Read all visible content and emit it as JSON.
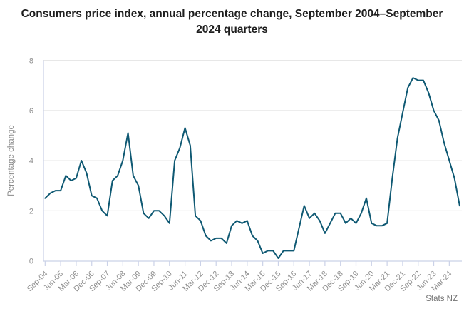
{
  "title": "Consumers price index, annual percentage change, September 2004–September 2024 quarters",
  "attribution": "Stats NZ",
  "colors": {
    "line": "#0f5973",
    "gridline": "#e7e7e7",
    "axis": "#cbd2e8",
    "tick_label": "#8f8f8f",
    "title": "#1e1e1e",
    "attribution": "#737373",
    "background": "#ffffff"
  },
  "chart_data": {
    "type": "line",
    "title": "Consumers price index, annual percentage change, September 2004–September 2024 quarters",
    "xlabel": "",
    "ylabel": "Percentage change",
    "ylim": [
      0,
      8
    ],
    "y_ticks": [
      0,
      2,
      4,
      6,
      8
    ],
    "x_tick_every": 3,
    "grid": true,
    "legend_position": "none",
    "categories": [
      "Sep-04",
      "Dec-04",
      "Mar-05",
      "Jun-05",
      "Sep-05",
      "Dec-05",
      "Mar-06",
      "Jun-06",
      "Sep-06",
      "Dec-06",
      "Mar-07",
      "Jun-07",
      "Sep-07",
      "Dec-07",
      "Mar-08",
      "Jun-08",
      "Sep-08",
      "Dec-08",
      "Mar-09",
      "Jun-09",
      "Sep-09",
      "Dec-09",
      "Mar-10",
      "Jun-10",
      "Sep-10",
      "Dec-10",
      "Mar-11",
      "Jun-11",
      "Sep-11",
      "Dec-11",
      "Mar-12",
      "Jun-12",
      "Sep-12",
      "Dec-12",
      "Mar-13",
      "Jun-13",
      "Sep-13",
      "Dec-13",
      "Mar-14",
      "Jun-14",
      "Sep-14",
      "Dec-14",
      "Mar-15",
      "Jun-15",
      "Sep-15",
      "Dec-15",
      "Mar-16",
      "Jun-16",
      "Sep-16",
      "Dec-16",
      "Mar-17",
      "Jun-17",
      "Sep-17",
      "Dec-17",
      "Mar-18",
      "Jun-18",
      "Sep-18",
      "Dec-18",
      "Mar-19",
      "Jun-19",
      "Sep-19",
      "Dec-19",
      "Mar-20",
      "Jun-20",
      "Sep-20",
      "Dec-20",
      "Mar-21",
      "Jun-21",
      "Sep-21",
      "Dec-21",
      "Mar-22",
      "Jun-22",
      "Sep-22",
      "Dec-22",
      "Mar-23",
      "Jun-23",
      "Sep-23",
      "Dec-23",
      "Mar-24",
      "Jun-24",
      "Sep-24"
    ],
    "values": [
      2.5,
      2.7,
      2.8,
      2.8,
      3.4,
      3.2,
      3.3,
      4.0,
      3.5,
      2.6,
      2.5,
      2.0,
      1.8,
      3.2,
      3.4,
      4.0,
      5.1,
      3.4,
      3.0,
      1.9,
      1.7,
      2.0,
      2.0,
      1.8,
      1.5,
      4.0,
      4.5,
      5.3,
      4.6,
      1.8,
      1.6,
      1.0,
      0.8,
      0.9,
      0.9,
      0.7,
      1.4,
      1.6,
      1.5,
      1.6,
      1.0,
      0.8,
      0.3,
      0.4,
      0.4,
      0.1,
      0.4,
      0.4,
      0.4,
      1.3,
      2.2,
      1.7,
      1.9,
      1.6,
      1.1,
      1.5,
      1.9,
      1.9,
      1.5,
      1.7,
      1.5,
      1.9,
      2.5,
      1.5,
      1.4,
      1.4,
      1.5,
      3.3,
      4.9,
      5.9,
      6.9,
      7.3,
      7.2,
      7.2,
      6.7,
      6.0,
      5.6,
      4.7,
      4.0,
      3.3,
      2.2
    ]
  }
}
